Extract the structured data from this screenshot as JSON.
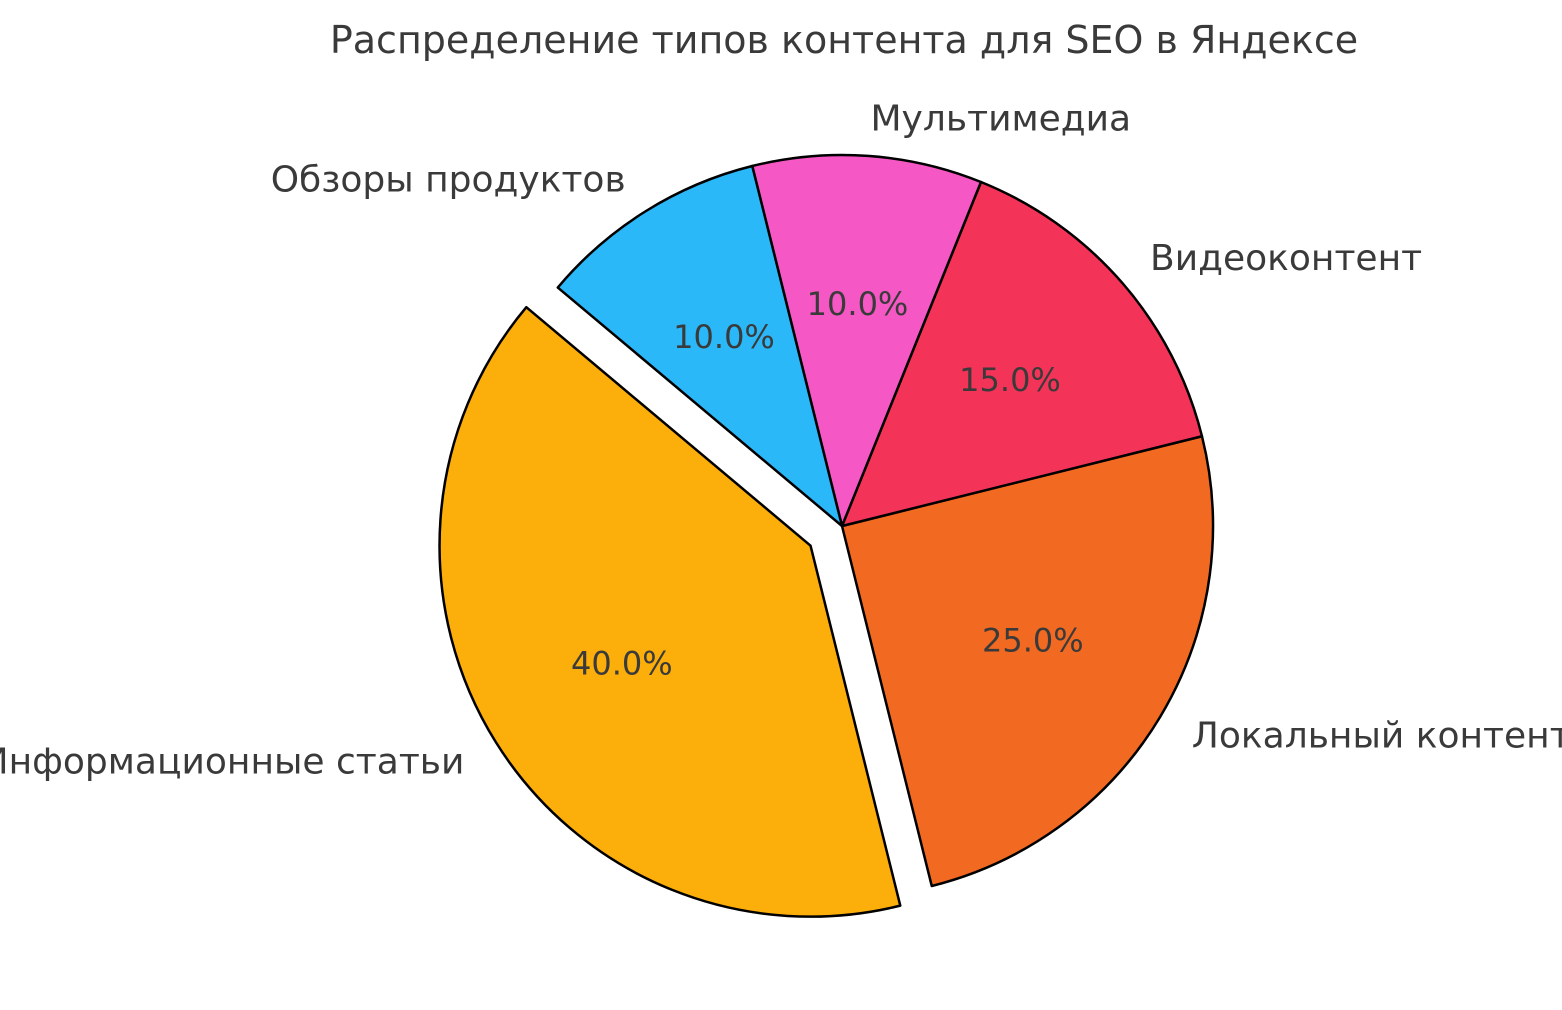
{
  "header": {
    "title": "Распределение типов контента для SEO в Яндексе"
  },
  "chart_data": {
    "type": "pie",
    "title": "Распределение типов контента для SEO в Яндексе",
    "categories": [
      "Информационные статьи",
      "Локальный контент",
      "Видеоконтент",
      "Мультимедиа",
      "Обзоры продуктов"
    ],
    "values": [
      40.0,
      25.0,
      15.0,
      10.0,
      10.0
    ],
    "slices": [
      {
        "label": "Информационные статьи",
        "value": 40.0,
        "pct_label": "40.0%",
        "color": "#FCAE0A",
        "explode": 0.1
      },
      {
        "label": "Локальный контент",
        "value": 25.0,
        "pct_label": "25.0%",
        "color": "#F26A21",
        "explode": 0
      },
      {
        "label": "Видеоконтент",
        "value": 15.0,
        "pct_label": "15.0%",
        "color": "#F43358",
        "explode": 0
      },
      {
        "label": "Мультимедиа",
        "value": 10.0,
        "pct_label": "10.0%",
        "color": "#F558C4",
        "explode": 0
      },
      {
        "label": "Обзоры продуктов",
        "value": 10.0,
        "pct_label": "10.0%",
        "color": "#2BB8F9",
        "explode": 0
      }
    ],
    "startangle": 140,
    "counterclock": true,
    "labeldistance": 1.1,
    "pctdistance": 0.6,
    "edge_color": "#000000",
    "edge_width": 2.5,
    "text_color": "#3a3a3a",
    "background": "#ffffff",
    "legend": "none",
    "grid": "off"
  }
}
